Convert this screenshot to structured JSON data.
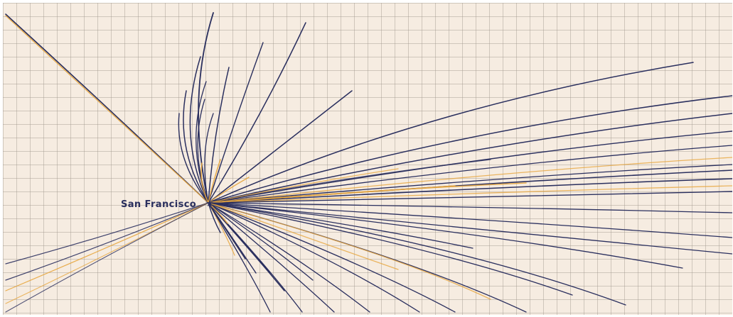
{
  "map": {
    "origin_label": "San Francisco",
    "origin_marker_glyph": "★",
    "colors": {
      "background": "#f6ece1",
      "grid": "#a0968c",
      "navy": "#2a2f5e",
      "gold": "#e7a63e",
      "label": "#2a2f5e"
    }
  }
}
